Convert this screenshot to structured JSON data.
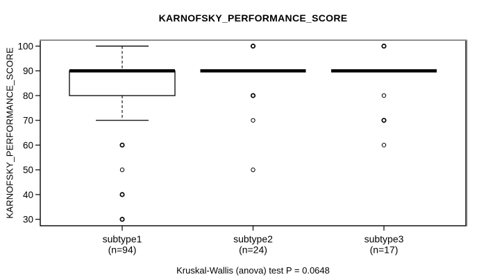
{
  "figure": {
    "background": "#ffffff"
  },
  "chart_data": {
    "type": "boxplot",
    "title": "KARNOFSKY_PERFORMANCE_SCORE",
    "ylabel": "KARNOFSKY_PERFORMANCE_SCORE",
    "xlabel": "",
    "caption": "Kruskal-Wallis (anova) test P = 0.0648",
    "grid": false,
    "legend": "none",
    "ylim": [
      27.4,
      102.4
    ],
    "yticks": [
      30,
      40,
      50,
      60,
      70,
      80,
      90,
      100
    ],
    "colors": {
      "stroke": "#000000",
      "frame_shadow": "#8c8c8c",
      "box_fill": "#ffffff",
      "background": "#ffffff"
    },
    "groups": [
      {
        "label": "subtype1",
        "sublabel": "(n=94)",
        "n": 94,
        "stats": {
          "whisker_low": 70,
          "q1": 80,
          "median": 90,
          "q3": 90,
          "whisker_high": 100
        },
        "outliers": [
          {
            "value": 60,
            "heavy": true
          },
          {
            "value": 50,
            "heavy": false
          },
          {
            "value": 40,
            "heavy": true
          },
          {
            "value": 30,
            "heavy": true
          }
        ]
      },
      {
        "label": "subtype2",
        "sublabel": "(n=24)",
        "n": 24,
        "stats": {
          "whisker_low": 90,
          "q1": 90,
          "median": 90,
          "q3": 90,
          "whisker_high": 90
        },
        "outliers": [
          {
            "value": 100,
            "heavy": true
          },
          {
            "value": 80,
            "heavy": true
          },
          {
            "value": 70,
            "heavy": false
          },
          {
            "value": 50,
            "heavy": false
          }
        ]
      },
      {
        "label": "subtype3",
        "sublabel": "(n=17)",
        "n": 17,
        "stats": {
          "whisker_low": 90,
          "q1": 90,
          "median": 90,
          "q3": 90,
          "whisker_high": 90
        },
        "outliers": [
          {
            "value": 100,
            "heavy": true
          },
          {
            "value": 80,
            "heavy": false
          },
          {
            "value": 70,
            "heavy": true
          },
          {
            "value": 60,
            "heavy": false
          }
        ]
      }
    ]
  }
}
